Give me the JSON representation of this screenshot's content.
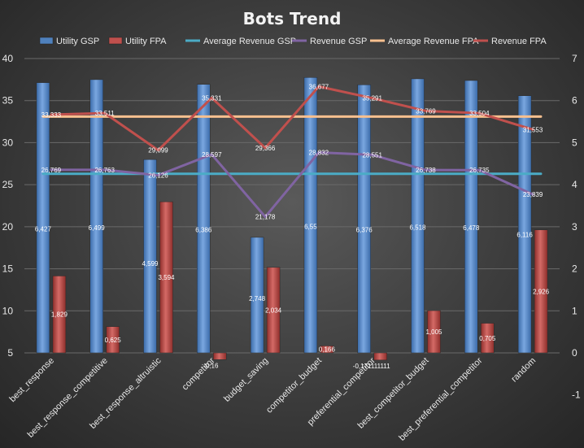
{
  "chart_data": {
    "type": "bar",
    "title": "Bots Trend",
    "xlabel": "",
    "ylabel": "",
    "ylim": [
      5,
      40
    ],
    "y2lim": [
      -1,
      7
    ],
    "y_ticks": [
      "5",
      "10",
      "15",
      "20",
      "25",
      "30",
      "35",
      "40"
    ],
    "y2_ticks": [
      "-1",
      "0",
      "1",
      "2",
      "3",
      "4",
      "5",
      "6",
      "7"
    ],
    "grid": "horizontal",
    "legend_position": "top",
    "categories": [
      "best_response",
      "best_response_competitive",
      "best_response_altruistic",
      "competitor",
      "budget_saving",
      "competitor_budget",
      "preferential_competitor",
      "best_competitor_budget",
      "best_preferential_competitor",
      "random"
    ],
    "series": [
      {
        "name": "Utility GSP",
        "kind": "bar",
        "axis": "right",
        "color": "#4f81bd",
        "values": [
          6.427,
          6.499,
          4.599,
          6.386,
          2.748,
          6.55,
          6.376,
          6.518,
          6.478,
          6.116
        ],
        "labels": [
          "6,427",
          "6,499",
          "4,599",
          "6,386",
          "2,748",
          "6,55",
          "6,376",
          "6,518",
          "6,478",
          "6,116"
        ]
      },
      {
        "name": "Utility FPA",
        "kind": "bar",
        "axis": "right",
        "color": "#c0504d",
        "values": [
          1.829,
          0.625,
          3.594,
          -0.16,
          2.034,
          0.166,
          -0.171111111,
          1.005,
          0.705,
          2.926
        ],
        "labels": [
          "1,829",
          "0,625",
          "3,594",
          "-0,16",
          "2,034",
          "0,166",
          "-0,171111111",
          "1,005",
          "0,705",
          "2,926"
        ]
      },
      {
        "name": "Average Revenue GSP",
        "kind": "line",
        "axis": "left",
        "color": "#4bacc6",
        "values": [
          26.29,
          26.29,
          26.29,
          26.29,
          26.29,
          26.29,
          26.29,
          26.29,
          26.29,
          26.29
        ]
      },
      {
        "name": "Revenue GSP",
        "kind": "line",
        "axis": "left",
        "color": "#8064a2",
        "values": [
          26.769,
          26.763,
          26.126,
          28.597,
          21.178,
          28.832,
          28.551,
          26.738,
          26.735,
          23.839
        ],
        "labels": [
          "26,769",
          "26,763",
          "26,126",
          "28,597",
          "21,178",
          "28,832",
          "28,551",
          "26,738",
          "26,735",
          "23,839"
        ]
      },
      {
        "name": "Average Revenue FPA",
        "kind": "line",
        "axis": "left",
        "color": "#f9c08f",
        "values": [
          33.1,
          33.1,
          33.1,
          33.1,
          33.1,
          33.1,
          33.1,
          33.1,
          33.1,
          33.1
        ]
      },
      {
        "name": "Revenue FPA",
        "kind": "line",
        "axis": "left",
        "color": "#c0504d",
        "values": [
          33.333,
          33.511,
          29.099,
          35.331,
          29.366,
          36.677,
          35.291,
          33.769,
          33.504,
          31.553
        ],
        "labels": [
          "33,333",
          "33,511",
          "29,099",
          "35,331",
          "29,366",
          "36,677",
          "35,291",
          "33,769",
          "33,504",
          "31,553"
        ]
      }
    ]
  }
}
